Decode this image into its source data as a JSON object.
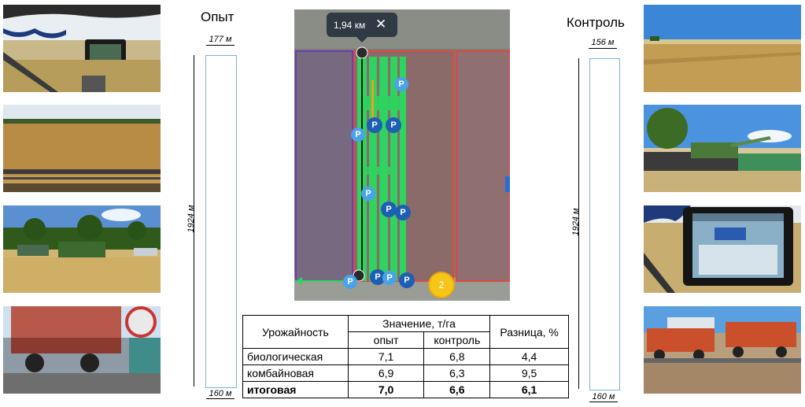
{
  "labels": {
    "left_title": "Опыт",
    "right_title": "Контроль"
  },
  "left_strip": {
    "top_width": "177 м",
    "length": "1924 м",
    "bottom_width": "160 м"
  },
  "right_strip": {
    "top_width": "156 м",
    "length": "1924 м",
    "bottom_width": "160 м"
  },
  "map": {
    "distance": "1,94 км",
    "close_glyph": "✕",
    "cluster_count": "2",
    "parking_marker": "P"
  },
  "table": {
    "header_label": "Урожайность",
    "header_value": "Значение, т/га",
    "header_diff": "Разница, %",
    "sub_trial": "опыт",
    "sub_control": "контроль",
    "rows": [
      {
        "label": "биологическая",
        "trial": "7,1",
        "control": "6,8",
        "diff": "4,4"
      },
      {
        "label": "комбайновая",
        "trial": "6,9",
        "control": "6,3",
        "diff": "9,5"
      },
      {
        "label": "итоговая",
        "trial": "7,0",
        "control": "6,6",
        "diff": "6,1"
      }
    ]
  },
  "colors": {
    "strip_border": "#7fb2d8",
    "track_green": "#2fd35f",
    "field_red": "#e0473f",
    "field_purple": "#6a3db4",
    "marker_blue": "#1d5fb3",
    "cluster_yellow": "#f5c518"
  }
}
